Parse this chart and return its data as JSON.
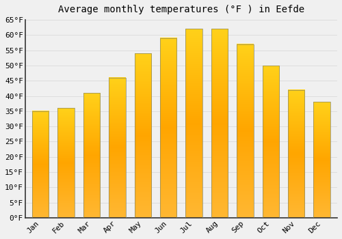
{
  "title": "Average monthly temperatures (°F ) in Eefde",
  "months": [
    "Jan",
    "Feb",
    "Mar",
    "Apr",
    "May",
    "Jun",
    "Jul",
    "Aug",
    "Sep",
    "Oct",
    "Nov",
    "Dec"
  ],
  "values": [
    35,
    36,
    41,
    46,
    54,
    59,
    62,
    62,
    57,
    50,
    42,
    38
  ],
  "bar_color_top": "#FFCC44",
  "bar_color_mid": "#FFA500",
  "bar_color_bot": "#FFB830",
  "ylim": [
    0,
    65
  ],
  "yticks": [
    0,
    5,
    10,
    15,
    20,
    25,
    30,
    35,
    40,
    45,
    50,
    55,
    60,
    65
  ],
  "ytick_labels": [
    "0°F",
    "5°F",
    "10°F",
    "15°F",
    "20°F",
    "25°F",
    "30°F",
    "35°F",
    "40°F",
    "45°F",
    "50°F",
    "55°F",
    "60°F",
    "65°F"
  ],
  "grid_color": "#dddddd",
  "background_color": "#f0f0f0",
  "title_fontsize": 10,
  "tick_fontsize": 8,
  "bar_width": 0.65
}
